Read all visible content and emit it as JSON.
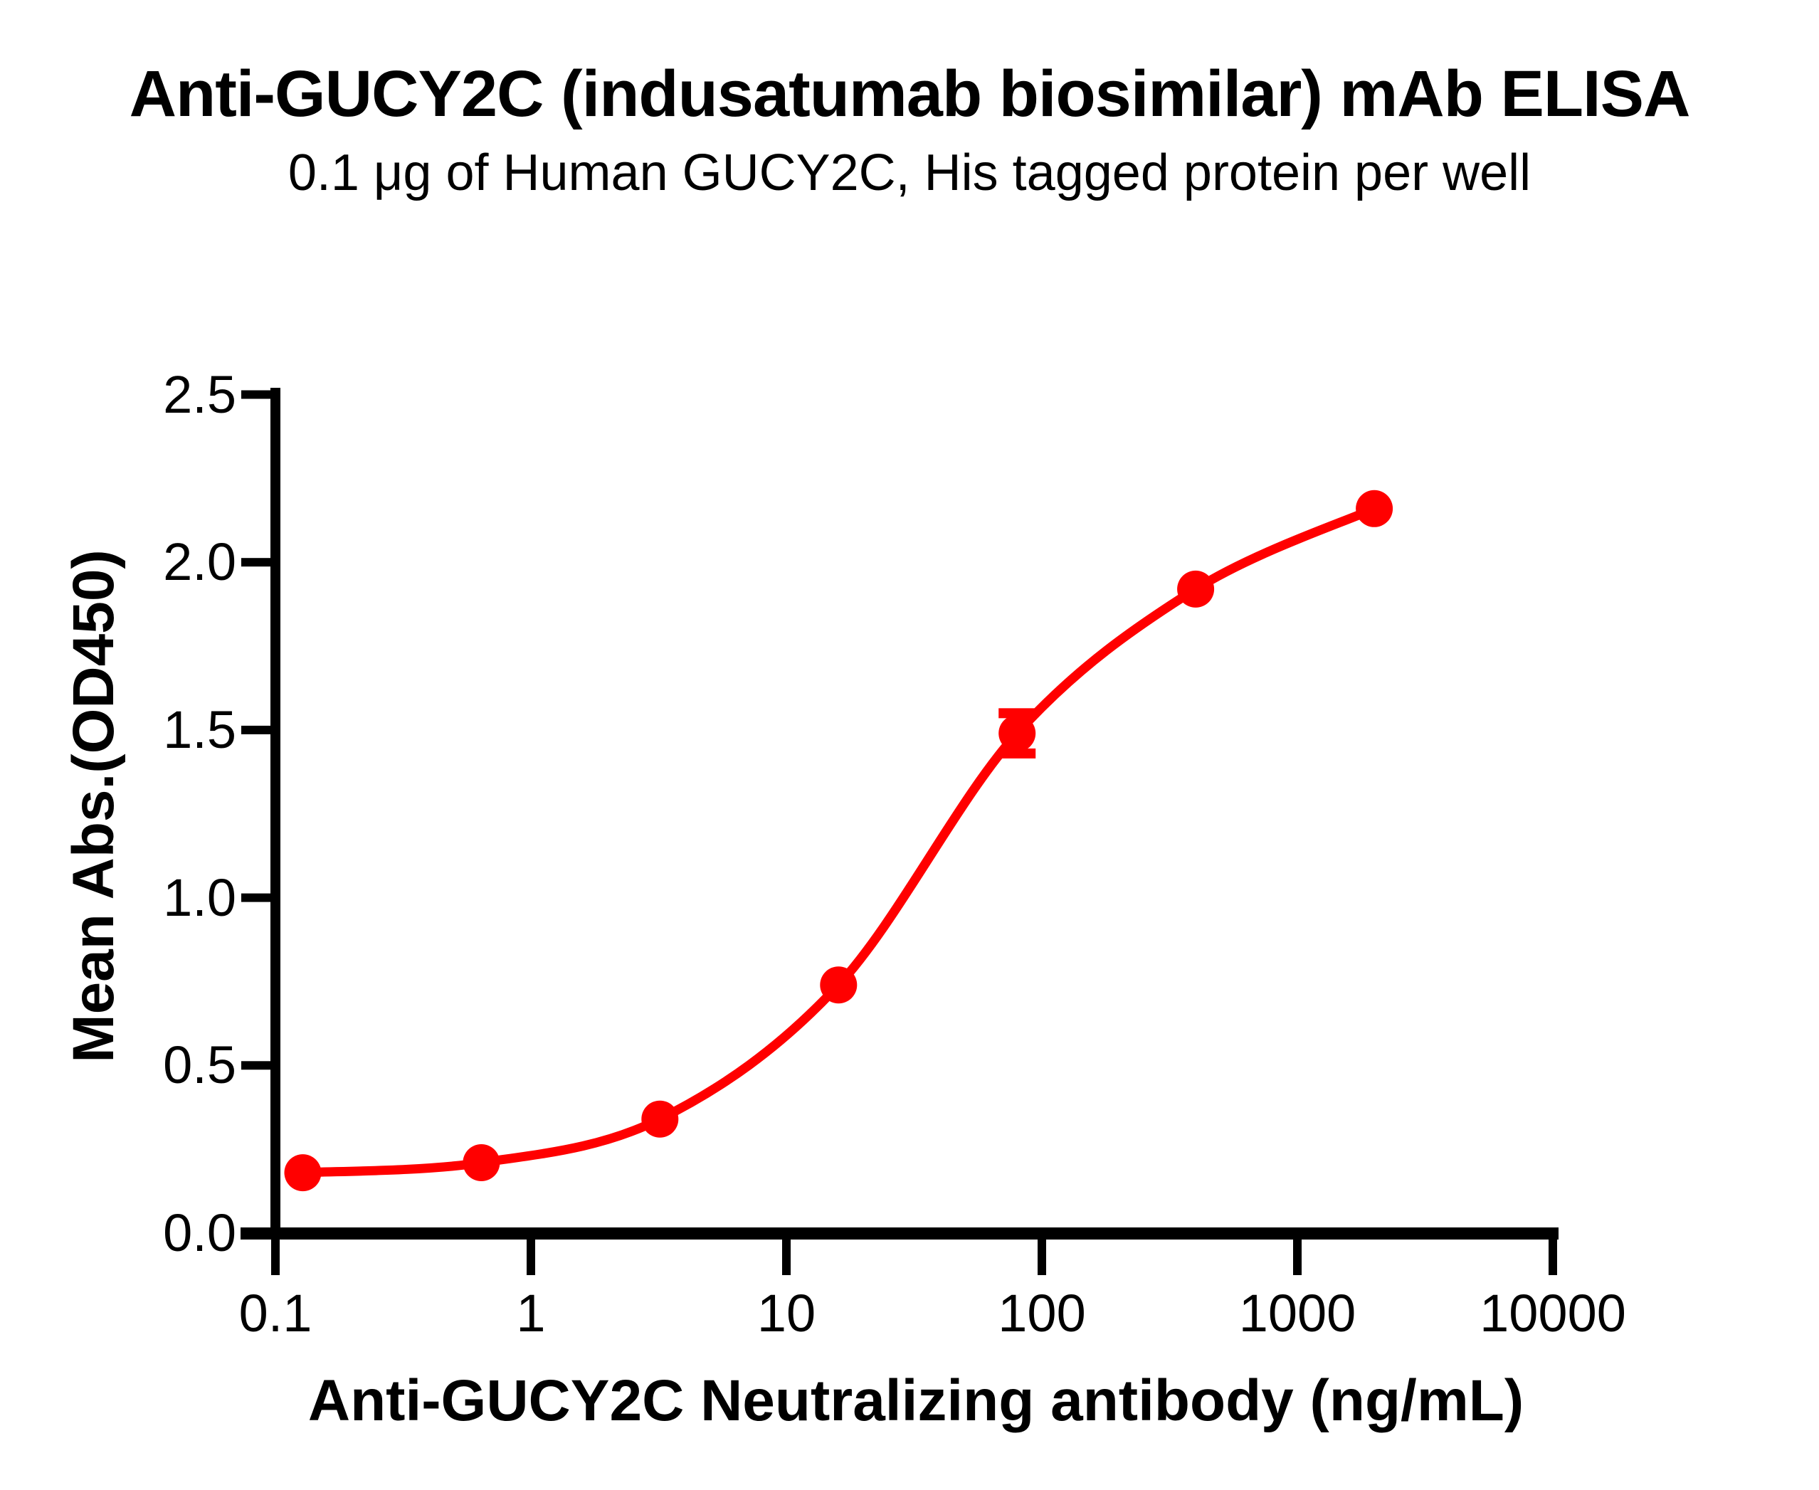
{
  "header": {
    "title": "Anti-GUCY2C (indusatumab biosimilar) mAb ELISA",
    "subtitle": "0.1 μg of Human GUCY2C, His tagged protein per well"
  },
  "colors": {
    "series": "#FF0000",
    "axis": "#000000",
    "background": "#FFFFFF",
    "text": "#000000"
  },
  "chart_data": {
    "type": "scatter",
    "curve": "4PL-sigmoid-connecting-line",
    "marker": "filled-circle",
    "x_scale": "log10",
    "x": [
      0.128,
      0.64,
      3.2,
      16,
      80,
      400,
      2000
    ],
    "y": [
      0.18,
      0.21,
      0.34,
      0.74,
      1.49,
      1.92,
      2.16
    ],
    "y_err": [
      0,
      0,
      0,
      0,
      0.06,
      0,
      0
    ],
    "title": "Anti-GUCY2C (indusatumab biosimilar) mAb ELISA",
    "subtitle": "0.1 μg of Human GUCY2C, His tagged protein per well",
    "xlabel": "Anti-GUCY2C Neutralizing antibody (ng/mL)",
    "ylabel": "Mean Abs.(OD450)",
    "xlim": [
      0.1,
      10000
    ],
    "ylim": [
      0.0,
      2.5
    ],
    "x_ticks": [
      0.1,
      1,
      10,
      100,
      1000,
      10000
    ],
    "x_tick_labels": [
      "0.1",
      "1",
      "10",
      "100",
      "1000",
      "10000"
    ],
    "y_ticks": [
      0.0,
      0.5,
      1.0,
      1.5,
      2.0,
      2.5
    ],
    "y_tick_labels": [
      "0.0",
      "0.5",
      "1.0",
      "1.5",
      "2.0",
      "2.5"
    ],
    "grid": false,
    "legend": null
  }
}
